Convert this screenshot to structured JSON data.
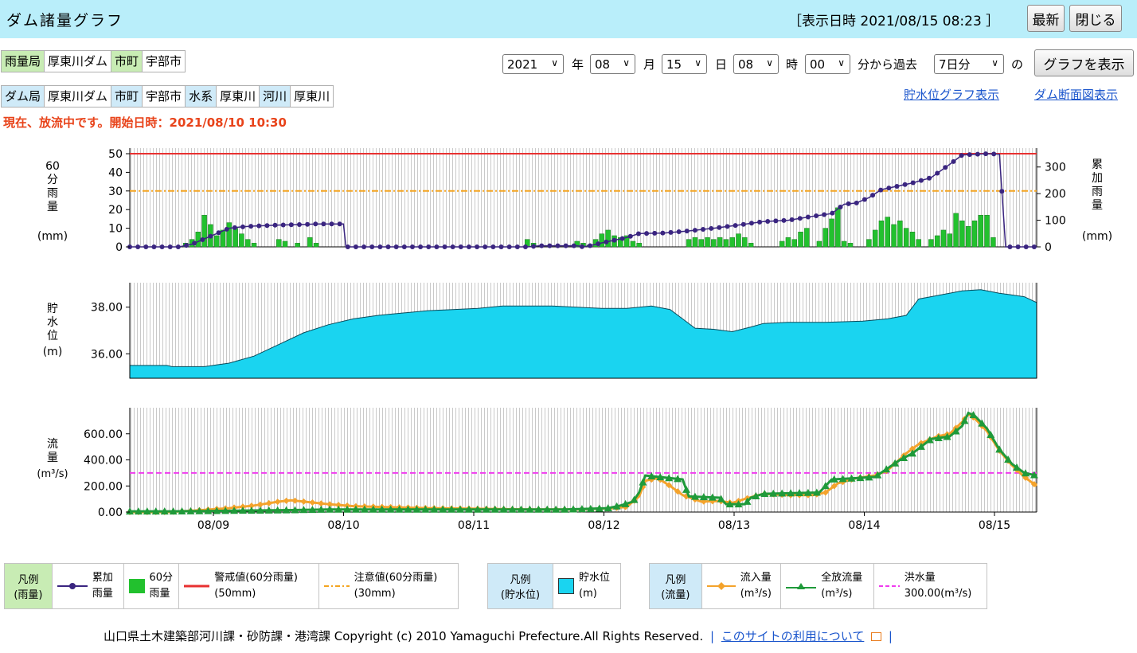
{
  "header": {
    "title": "ダム諸量グラフ",
    "datetime": "［表示日時 2021/08/15 08:23 ］",
    "refresh_label": "最新",
    "close_label": "閉じる"
  },
  "row1": [
    {
      "text": "雨量局",
      "kind": "label"
    },
    {
      "text": "厚東川ダム",
      "kind": "value"
    },
    {
      "text": "市町",
      "kind": "label"
    },
    {
      "text": "宇部市",
      "kind": "value"
    }
  ],
  "row2": [
    {
      "text": "ダム局",
      "kind": "label"
    },
    {
      "text": "厚東川ダム",
      "kind": "value"
    },
    {
      "text": "市町",
      "kind": "label"
    },
    {
      "text": "宇部市",
      "kind": "value"
    },
    {
      "text": "水系",
      "kind": "label"
    },
    {
      "text": "厚東川",
      "kind": "value"
    },
    {
      "text": "河川",
      "kind": "label"
    },
    {
      "text": "厚東川",
      "kind": "value"
    }
  ],
  "controls": {
    "year": "2021",
    "year_unit": "年",
    "month": "08",
    "month_unit": "月",
    "day": "15",
    "day_unit": "日",
    "hour": "08",
    "hour_unit": "時",
    "minute": "00",
    "minute_unit": "分から過去",
    "period": "7日分",
    "period_unit": "の",
    "show_label": "グラフを表示"
  },
  "links": {
    "storage_graph": "貯水位グラフ表示",
    "section": "ダム断面図表示"
  },
  "notice": "現在、放流中です。開始日時：2021/08/10 10:30",
  "chart_data": [
    {
      "type": "bar",
      "ylabel_left": "60分雨量",
      "ylabel_left_unit": "(mm)",
      "ylabel_right": "累加雨量",
      "ylabel_right_unit": "(mm)",
      "ylim_left": [
        0,
        50
      ],
      "yticks_left": [
        "50",
        "40",
        "30",
        "20",
        "10",
        "0"
      ],
      "ylim_right": [
        0,
        350
      ],
      "yticks_right": [
        "300",
        "200",
        "100",
        "0"
      ],
      "warning_line": 50,
      "caution_line": 30,
      "rain_60min": [
        {
          "t": 0.45,
          "v": 2
        },
        {
          "t": 0.5,
          "v": 4
        },
        {
          "t": 0.55,
          "v": 8
        },
        {
          "t": 0.6,
          "v": 17
        },
        {
          "t": 0.65,
          "v": 12
        },
        {
          "t": 0.7,
          "v": 6
        },
        {
          "t": 0.75,
          "v": 9
        },
        {
          "t": 0.8,
          "v": 13
        },
        {
          "t": 0.85,
          "v": 10
        },
        {
          "t": 0.9,
          "v": 7
        },
        {
          "t": 0.95,
          "v": 4
        },
        {
          "t": 1.0,
          "v": 2
        },
        {
          "t": 1.2,
          "v": 4
        },
        {
          "t": 1.25,
          "v": 3
        },
        {
          "t": 1.35,
          "v": 2
        },
        {
          "t": 1.45,
          "v": 5
        },
        {
          "t": 1.5,
          "v": 2
        },
        {
          "t": 3.2,
          "v": 4
        },
        {
          "t": 3.25,
          "v": 2
        },
        {
          "t": 3.6,
          "v": 3
        },
        {
          "t": 3.65,
          "v": 2
        },
        {
          "t": 3.7,
          "v": 1
        },
        {
          "t": 3.75,
          "v": 4
        },
        {
          "t": 3.8,
          "v": 7
        },
        {
          "t": 3.85,
          "v": 9
        },
        {
          "t": 3.9,
          "v": 6
        },
        {
          "t": 3.95,
          "v": 5
        },
        {
          "t": 4.0,
          "v": 6
        },
        {
          "t": 4.05,
          "v": 3
        },
        {
          "t": 4.1,
          "v": 2
        },
        {
          "t": 4.5,
          "v": 4
        },
        {
          "t": 4.55,
          "v": 5
        },
        {
          "t": 4.6,
          "v": 4
        },
        {
          "t": 4.65,
          "v": 5
        },
        {
          "t": 4.7,
          "v": 4
        },
        {
          "t": 4.75,
          "v": 5
        },
        {
          "t": 4.8,
          "v": 4
        },
        {
          "t": 4.85,
          "v": 5
        },
        {
          "t": 4.9,
          "v": 7
        },
        {
          "t": 4.95,
          "v": 5
        },
        {
          "t": 5.0,
          "v": 2
        },
        {
          "t": 5.25,
          "v": 3
        },
        {
          "t": 5.3,
          "v": 5
        },
        {
          "t": 5.35,
          "v": 4
        },
        {
          "t": 5.4,
          "v": 8
        },
        {
          "t": 5.45,
          "v": 10
        },
        {
          "t": 5.55,
          "v": 3
        },
        {
          "t": 5.6,
          "v": 10
        },
        {
          "t": 5.65,
          "v": 15
        },
        {
          "t": 5.7,
          "v": 21
        },
        {
          "t": 5.75,
          "v": 3
        },
        {
          "t": 5.8,
          "v": 2
        },
        {
          "t": 5.95,
          "v": 4
        },
        {
          "t": 6.0,
          "v": 9
        },
        {
          "t": 6.05,
          "v": 14
        },
        {
          "t": 6.1,
          "v": 16
        },
        {
          "t": 6.15,
          "v": 12
        },
        {
          "t": 6.2,
          "v": 14
        },
        {
          "t": 6.25,
          "v": 10
        },
        {
          "t": 6.3,
          "v": 8
        },
        {
          "t": 6.35,
          "v": 4
        },
        {
          "t": 6.45,
          "v": 4
        },
        {
          "t": 6.5,
          "v": 6
        },
        {
          "t": 6.55,
          "v": 9
        },
        {
          "t": 6.6,
          "v": 7
        },
        {
          "t": 6.65,
          "v": 18
        },
        {
          "t": 6.7,
          "v": 14
        },
        {
          "t": 6.75,
          "v": 11
        },
        {
          "t": 6.8,
          "v": 14
        },
        {
          "t": 6.85,
          "v": 17
        },
        {
          "t": 6.9,
          "v": 17
        },
        {
          "t": 6.95,
          "v": 5
        }
      ],
      "cumulative": [
        {
          "t": 0.0,
          "v": 0
        },
        {
          "t": 0.4,
          "v": 0
        },
        {
          "t": 0.5,
          "v": 10
        },
        {
          "t": 0.6,
          "v": 30
        },
        {
          "t": 0.7,
          "v": 50
        },
        {
          "t": 0.8,
          "v": 70
        },
        {
          "t": 0.9,
          "v": 75
        },
        {
          "t": 1.0,
          "v": 78
        },
        {
          "t": 1.2,
          "v": 82
        },
        {
          "t": 1.4,
          "v": 84
        },
        {
          "t": 1.5,
          "v": 86
        },
        {
          "t": 1.72,
          "v": 86
        },
        {
          "t": 1.74,
          "v": 0
        },
        {
          "t": 3.2,
          "v": 0
        },
        {
          "t": 3.3,
          "v": 4
        },
        {
          "t": 3.6,
          "v": 4
        },
        {
          "t": 3.65,
          "v": 0
        },
        {
          "t": 3.7,
          "v": 4
        },
        {
          "t": 3.8,
          "v": 15
        },
        {
          "t": 3.9,
          "v": 25
        },
        {
          "t": 4.0,
          "v": 35
        },
        {
          "t": 4.1,
          "v": 50
        },
        {
          "t": 4.3,
          "v": 52
        },
        {
          "t": 4.5,
          "v": 60
        },
        {
          "t": 4.7,
          "v": 70
        },
        {
          "t": 4.9,
          "v": 82
        },
        {
          "t": 5.1,
          "v": 95
        },
        {
          "t": 5.3,
          "v": 100
        },
        {
          "t": 5.5,
          "v": 115
        },
        {
          "t": 5.65,
          "v": 125
        },
        {
          "t": 5.75,
          "v": 160
        },
        {
          "t": 5.85,
          "v": 165
        },
        {
          "t": 5.95,
          "v": 185
        },
        {
          "t": 6.05,
          "v": 215
        },
        {
          "t": 6.15,
          "v": 225
        },
        {
          "t": 6.3,
          "v": 240
        },
        {
          "t": 6.45,
          "v": 260
        },
        {
          "t": 6.6,
          "v": 310
        },
        {
          "t": 6.7,
          "v": 345
        },
        {
          "t": 6.9,
          "v": 350
        },
        {
          "t": 7.0,
          "v": 348
        },
        {
          "t": 7.05,
          "v": 0
        },
        {
          "t": 7.3,
          "v": 0
        }
      ]
    },
    {
      "type": "area",
      "ylabel": "貯水位",
      "ylabel_unit": "(m)",
      "yticks": [
        "38.00",
        "36.00"
      ],
      "ylim": [
        34.95,
        39.05
      ],
      "series": [
        {
          "t": 0.0,
          "v": 35.5
        },
        {
          "t": 0.3,
          "v": 35.5
        },
        {
          "t": 0.34,
          "v": 35.45
        },
        {
          "t": 0.6,
          "v": 35.45
        },
        {
          "t": 0.8,
          "v": 35.6
        },
        {
          "t": 1.0,
          "v": 35.9
        },
        {
          "t": 1.2,
          "v": 36.4
        },
        {
          "t": 1.4,
          "v": 36.9
        },
        {
          "t": 1.6,
          "v": 37.25
        },
        {
          "t": 1.8,
          "v": 37.5
        },
        {
          "t": 2.0,
          "v": 37.65
        },
        {
          "t": 2.2,
          "v": 37.75
        },
        {
          "t": 2.4,
          "v": 37.85
        },
        {
          "t": 2.6,
          "v": 37.9
        },
        {
          "t": 2.8,
          "v": 37.95
        },
        {
          "t": 3.0,
          "v": 38.05
        },
        {
          "t": 3.4,
          "v": 38.05
        },
        {
          "t": 3.6,
          "v": 38.0
        },
        {
          "t": 3.8,
          "v": 37.95
        },
        {
          "t": 4.0,
          "v": 37.95
        },
        {
          "t": 4.2,
          "v": 38.05
        },
        {
          "t": 4.35,
          "v": 37.9
        },
        {
          "t": 4.45,
          "v": 37.5
        },
        {
          "t": 4.55,
          "v": 37.1
        },
        {
          "t": 4.7,
          "v": 37.05
        },
        {
          "t": 4.85,
          "v": 36.95
        },
        {
          "t": 5.0,
          "v": 37.15
        },
        {
          "t": 5.1,
          "v": 37.3
        },
        {
          "t": 5.3,
          "v": 37.35
        },
        {
          "t": 5.6,
          "v": 37.35
        },
        {
          "t": 5.9,
          "v": 37.4
        },
        {
          "t": 6.1,
          "v": 37.5
        },
        {
          "t": 6.25,
          "v": 37.65
        },
        {
          "t": 6.35,
          "v": 38.35
        },
        {
          "t": 6.5,
          "v": 38.5
        },
        {
          "t": 6.7,
          "v": 38.7
        },
        {
          "t": 6.85,
          "v": 38.75
        },
        {
          "t": 7.0,
          "v": 38.6
        },
        {
          "t": 7.2,
          "v": 38.45
        },
        {
          "t": 7.3,
          "v": 38.2
        }
      ]
    },
    {
      "type": "line",
      "ylabel": "流量",
      "ylabel_unit": "(m³/s)",
      "yticks": [
        "600.00",
        "400.00",
        "200.00",
        "0.00"
      ],
      "ylim": [
        0,
        800
      ],
      "flood_line": 300,
      "xticks": [
        "08/09",
        "08/10",
        "08/11",
        "08/12",
        "08/13",
        "08/14",
        "08/15"
      ],
      "inflow": [
        {
          "t": 0.0,
          "v": 0
        },
        {
          "t": 0.3,
          "v": 0
        },
        {
          "t": 0.5,
          "v": 10
        },
        {
          "t": 0.8,
          "v": 30
        },
        {
          "t": 1.0,
          "v": 50
        },
        {
          "t": 1.2,
          "v": 80
        },
        {
          "t": 1.3,
          "v": 90
        },
        {
          "t": 1.4,
          "v": 80
        },
        {
          "t": 1.6,
          "v": 60
        },
        {
          "t": 1.8,
          "v": 45
        },
        {
          "t": 2.0,
          "v": 40
        },
        {
          "t": 2.4,
          "v": 30
        },
        {
          "t": 2.8,
          "v": 25
        },
        {
          "t": 3.2,
          "v": 20
        },
        {
          "t": 3.6,
          "v": 20
        },
        {
          "t": 3.9,
          "v": 30
        },
        {
          "t": 4.0,
          "v": 40
        },
        {
          "t": 4.1,
          "v": 120
        },
        {
          "t": 4.15,
          "v": 240
        },
        {
          "t": 4.25,
          "v": 260
        },
        {
          "t": 4.35,
          "v": 200
        },
        {
          "t": 4.45,
          "v": 130
        },
        {
          "t": 4.6,
          "v": 80
        },
        {
          "t": 4.75,
          "v": 85
        },
        {
          "t": 4.85,
          "v": 70
        },
        {
          "t": 4.95,
          "v": 100
        },
        {
          "t": 5.1,
          "v": 140
        },
        {
          "t": 5.3,
          "v": 130
        },
        {
          "t": 5.5,
          "v": 130
        },
        {
          "t": 5.6,
          "v": 150
        },
        {
          "t": 5.7,
          "v": 220
        },
        {
          "t": 5.85,
          "v": 260
        },
        {
          "t": 6.0,
          "v": 280
        },
        {
          "t": 6.1,
          "v": 320
        },
        {
          "t": 6.25,
          "v": 450
        },
        {
          "t": 6.35,
          "v": 520
        },
        {
          "t": 6.5,
          "v": 580
        },
        {
          "t": 6.6,
          "v": 600
        },
        {
          "t": 6.7,
          "v": 690
        },
        {
          "t": 6.75,
          "v": 750
        },
        {
          "t": 6.8,
          "v": 720
        },
        {
          "t": 6.9,
          "v": 620
        },
        {
          "t": 7.0,
          "v": 470
        },
        {
          "t": 7.1,
          "v": 360
        },
        {
          "t": 7.2,
          "v": 270
        },
        {
          "t": 7.3,
          "v": 200
        }
      ],
      "discharge": [
        {
          "t": 0.0,
          "v": 5
        },
        {
          "t": 0.3,
          "v": 5
        },
        {
          "t": 0.6,
          "v": 8
        },
        {
          "t": 1.0,
          "v": 12
        },
        {
          "t": 1.3,
          "v": 15
        },
        {
          "t": 1.6,
          "v": 20
        },
        {
          "t": 2.0,
          "v": 20
        },
        {
          "t": 2.4,
          "v": 20
        },
        {
          "t": 2.8,
          "v": 20
        },
        {
          "t": 3.2,
          "v": 20
        },
        {
          "t": 3.5,
          "v": 20
        },
        {
          "t": 3.7,
          "v": 25
        },
        {
          "t": 3.85,
          "v": 30
        },
        {
          "t": 3.95,
          "v": 50
        },
        {
          "t": 4.05,
          "v": 80
        },
        {
          "t": 4.1,
          "v": 150
        },
        {
          "t": 4.15,
          "v": 280
        },
        {
          "t": 4.45,
          "v": 250
        },
        {
          "t": 4.5,
          "v": 120
        },
        {
          "t": 4.75,
          "v": 110
        },
        {
          "t": 4.8,
          "v": 60
        },
        {
          "t": 4.95,
          "v": 60
        },
        {
          "t": 5.0,
          "v": 110
        },
        {
          "t": 5.1,
          "v": 140
        },
        {
          "t": 5.55,
          "v": 150
        },
        {
          "t": 5.65,
          "v": 250
        },
        {
          "t": 5.85,
          "v": 260
        },
        {
          "t": 6.0,
          "v": 270
        },
        {
          "t": 6.2,
          "v": 400
        },
        {
          "t": 6.3,
          "v": 450
        },
        {
          "t": 6.45,
          "v": 560
        },
        {
          "t": 6.6,
          "v": 580
        },
        {
          "t": 6.7,
          "v": 660
        },
        {
          "t": 6.75,
          "v": 760
        },
        {
          "t": 6.8,
          "v": 740
        },
        {
          "t": 6.9,
          "v": 640
        },
        {
          "t": 7.0,
          "v": 480
        },
        {
          "t": 7.1,
          "v": 370
        },
        {
          "t": 7.2,
          "v": 300
        },
        {
          "t": 7.3,
          "v": 280
        }
      ]
    }
  ],
  "legend_rain": {
    "header1": "凡例",
    "header2": "(雨量)",
    "cum1": "累加",
    "cum2": "雨量",
    "bar1": "60分",
    "bar2": "雨量",
    "warn1": "警戒値(60分雨量)",
    "warn2": "(50mm)",
    "caution1": "注意値(60分雨量)",
    "caution2": "(30mm)"
  },
  "legend_storage": {
    "header1": "凡例",
    "header2": "(貯水位)",
    "item1": "貯水位",
    "item2": "(m)"
  },
  "legend_flow": {
    "header1": "凡例",
    "header2": "(流量)",
    "inflow1": "流入量",
    "inflow2": "(m³/s)",
    "discharge1": "全放流量",
    "discharge2": "(m³/s)",
    "flood1": "洪水量",
    "flood2": "300.00(m³/s)"
  },
  "colors": {
    "header_bg": "#b9eefa",
    "rain_bar": "#22c12e",
    "cumulative": "#3a2580",
    "warning": "#e83030",
    "caution": "#f4a420",
    "storage_fill": "#1ad4f0",
    "inflow": "#f4a32c",
    "discharge": "#1f9a3a",
    "flood": "#f03cef"
  },
  "footer": {
    "copyright": "山口県土木建築部河川課・砂防課・港湾課 Copyright (c) 2010 Yamaguchi Prefecture.All Rights Reserved.",
    "terms_link": "このサイトの利用について"
  }
}
